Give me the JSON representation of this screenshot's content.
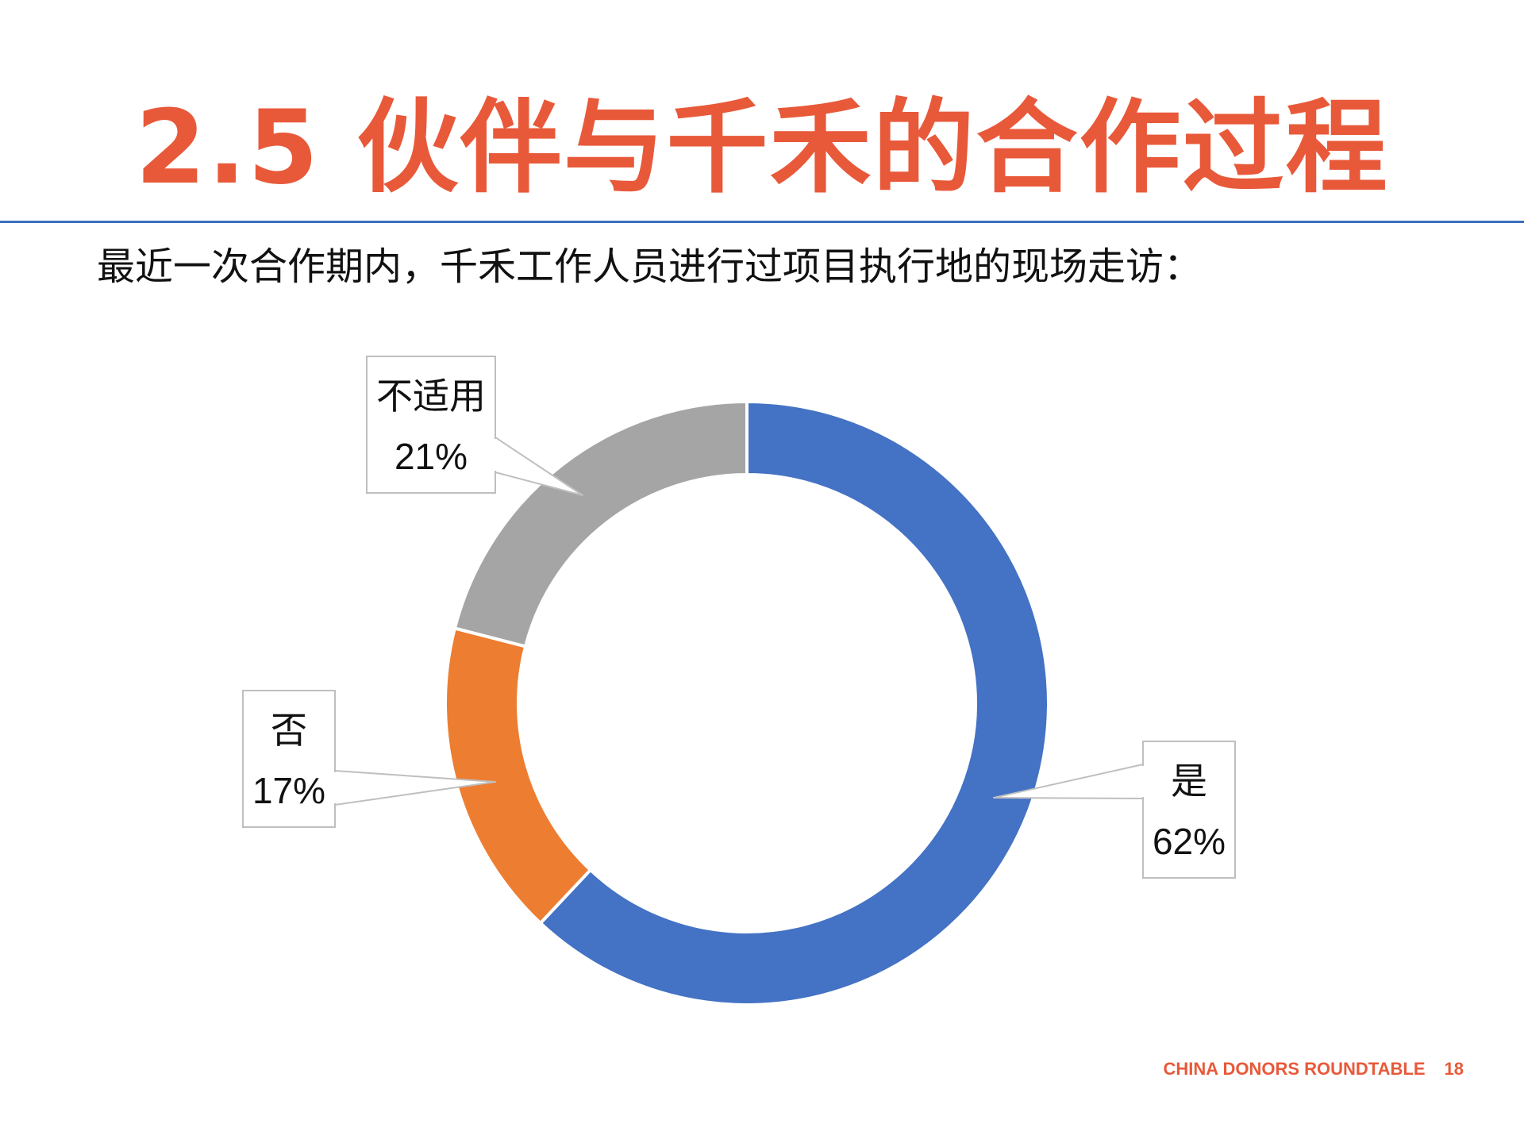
{
  "slide": {
    "title": "2.5 伙伴与千禾的合作过程",
    "subtitle": "最近一次合作期内，千禾工作人员进行过项目执行地的现场走访：",
    "footer_text": "CHINA DONORS ROUNDTABLE",
    "page_number": "18",
    "accent_color": "#e8593a",
    "rule_color": "#3a6fc0"
  },
  "chart_data": {
    "type": "pie",
    "variant": "donut",
    "title": "",
    "slices": [
      {
        "label": "是",
        "value": 62,
        "value_label": "62%",
        "color": "#4472c4"
      },
      {
        "label": "否",
        "value": 17,
        "value_label": "17%",
        "color": "#ed7d31"
      },
      {
        "label": "不适用",
        "value": 21,
        "value_label": "21%",
        "color": "#a5a5a5"
      }
    ],
    "start_angle": "12 o'clock, clockwise",
    "legend": "none",
    "data_labels": "callouts outside"
  }
}
